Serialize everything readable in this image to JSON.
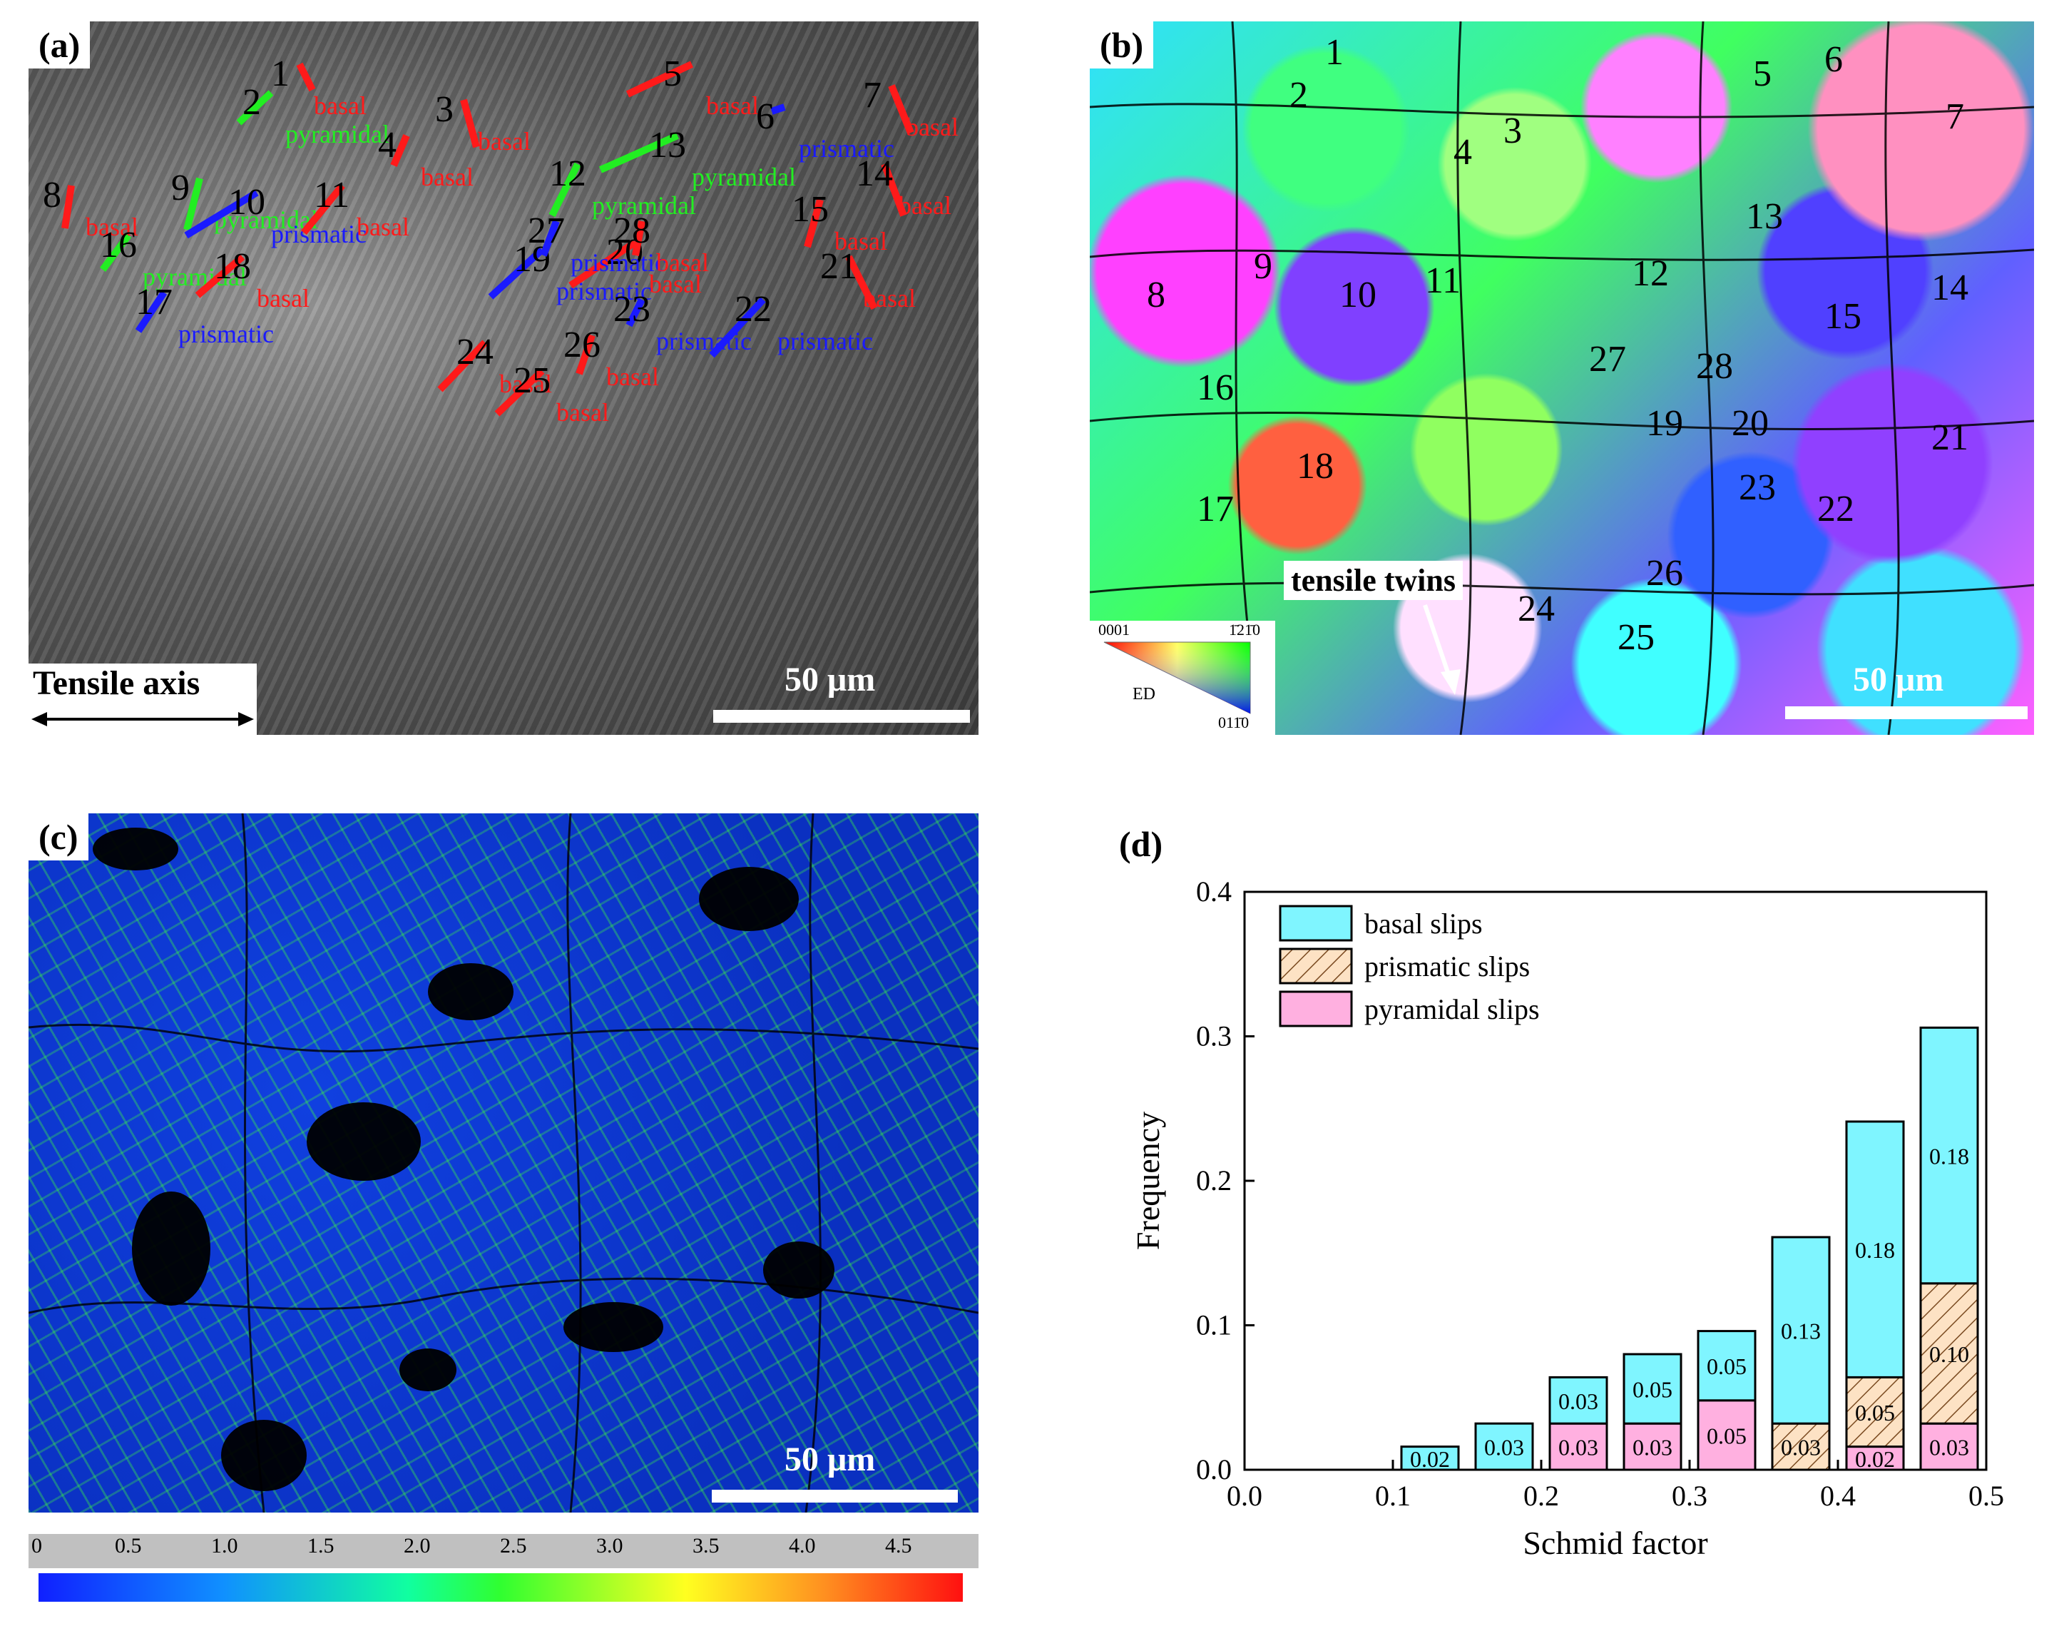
{
  "panels": {
    "a": {
      "label": "(a)"
    },
    "b": {
      "label": "(b)"
    },
    "c": {
      "label": "(c)"
    },
    "d": {
      "label": "(d)"
    }
  },
  "sem": {
    "tensile_axis_label": "Tensile axis",
    "scale_label": "50 μm",
    "colors": {
      "basal": "#ff1a1a",
      "prismatic": "#1a1aff",
      "pyramidal": "#22ee22"
    },
    "grains": [
      {
        "id": "1",
        "slip": "basal"
      },
      {
        "id": "2",
        "slip": "pyramidal"
      },
      {
        "id": "3",
        "slip": "basal"
      },
      {
        "id": "4",
        "slip": "basal"
      },
      {
        "id": "5",
        "slip": "basal"
      },
      {
        "id": "6",
        "slip": "prismatic"
      },
      {
        "id": "7",
        "slip": "basal"
      },
      {
        "id": "8",
        "slip": "basal"
      },
      {
        "id": "9",
        "slip": "pyramidal"
      },
      {
        "id": "10",
        "slip": "prismatic"
      },
      {
        "id": "11",
        "slip": "basal"
      },
      {
        "id": "12",
        "slip": "pyramidal"
      },
      {
        "id": "13",
        "slip": "pyramidal"
      },
      {
        "id": "14",
        "slip": "basal"
      },
      {
        "id": "15",
        "slip": "basal"
      },
      {
        "id": "16",
        "slip": "pyramidal"
      },
      {
        "id": "17",
        "slip": "prismatic"
      },
      {
        "id": "18",
        "slip": "basal"
      },
      {
        "id": "19",
        "slip": "prismatic"
      },
      {
        "id": "20",
        "slip": "basal"
      },
      {
        "id": "21",
        "slip": "basal"
      },
      {
        "id": "22",
        "slip": "prismatic"
      },
      {
        "id": "23",
        "slip": "prismatic"
      },
      {
        "id": "24",
        "slip": "basal"
      },
      {
        "id": "25",
        "slip": "basal"
      },
      {
        "id": "26",
        "slip": "basal"
      },
      {
        "id": "27",
        "slip": "prismatic"
      },
      {
        "id": "28",
        "slip": "basal"
      }
    ]
  },
  "ebsd": {
    "grain_ids": [
      "1",
      "2",
      "3",
      "4",
      "5",
      "6",
      "7",
      "8",
      "9",
      "10",
      "11",
      "12",
      "13",
      "14",
      "15",
      "16",
      "17",
      "18",
      "19",
      "20",
      "21",
      "22",
      "23",
      "24",
      "25",
      "26",
      "27",
      "28"
    ],
    "annotation": "tensile twins",
    "ipf": {
      "top_left": "0001",
      "top_right": "1̄21̄0",
      "bottom_right": "011̄0",
      "center": "ED"
    },
    "scale_label": "50 μm"
  },
  "kam": {
    "scale_label": "50 μm",
    "colorbar_ticks": [
      "0",
      "0.5",
      "1.0",
      "1.5",
      "2.0",
      "2.5",
      "3.0",
      "3.5",
      "4.0",
      "4.5"
    ]
  },
  "chart_data": {
    "type": "bar",
    "stacked": true,
    "xlabel": "Schmid factor",
    "ylabel": "Frequency",
    "xlim": [
      0.0,
      0.5
    ],
    "ylim": [
      0.0,
      0.4
    ],
    "xticks": [
      "0.0",
      "0.1",
      "0.2",
      "0.3",
      "0.4",
      "0.5"
    ],
    "yticks": [
      "0.0",
      "0.1",
      "0.2",
      "0.3",
      "0.4"
    ],
    "bin_width": 0.05,
    "bin_starts": [
      0.1,
      0.15,
      0.2,
      0.25,
      0.3,
      0.35,
      0.4,
      0.45
    ],
    "legend_position": "top-left",
    "series": [
      {
        "name": "pyramidal slips",
        "color": "#ffb0e0",
        "hatch": false,
        "values": [
          0,
          0,
          0.032,
          0.032,
          0.048,
          0,
          0.016,
          0.032
        ],
        "labels": [
          "",
          "",
          "0.03",
          "0.03",
          "0.05",
          "",
          "0.02",
          "0.03"
        ]
      },
      {
        "name": "prismatic slips",
        "color": "#fde2c4",
        "hatch": true,
        "values": [
          0,
          0,
          0,
          0,
          0,
          0.032,
          0.048,
          0.097
        ],
        "labels": [
          "",
          "",
          "",
          "",
          "",
          "0.03",
          "0.05",
          "0.10"
        ]
      },
      {
        "name": "basal slips",
        "color": "#7ff5ff",
        "hatch": false,
        "values": [
          0.016,
          0.032,
          0.032,
          0.048,
          0.048,
          0.129,
          0.177,
          0.177
        ],
        "labels": [
          "0.02",
          "0.03",
          "0.03",
          "0.05",
          "0.05",
          "0.13",
          "0.18",
          "0.18"
        ]
      }
    ]
  }
}
